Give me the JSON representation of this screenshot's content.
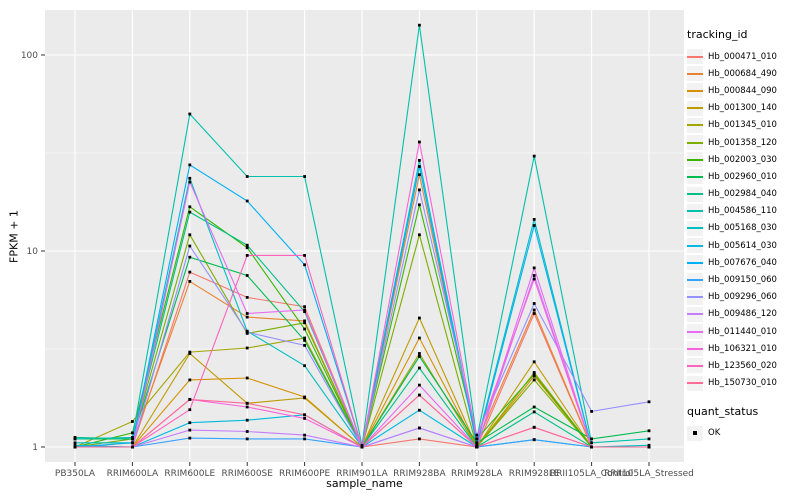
{
  "chart_data": {
    "type": "line",
    "title": "",
    "xlabel": "sample_name",
    "ylabel": "FPKM + 1",
    "yscale": "log10",
    "ylim": [
      0.85,
      170
    ],
    "grid": true,
    "panel_bg": "#EBEBEB",
    "grid_color": "#FFFFFF",
    "marker": "black-square",
    "marker_color": "#000000",
    "tick_color": "#333333",
    "tick_label_color": "#4D4D4D",
    "y_ticks": {
      "values": [
        1,
        10,
        100
      ],
      "labels": [
        "1",
        "10",
        "100"
      ]
    },
    "y_minor_ticks": [
      3.1623,
      31.623
    ],
    "x": [
      "PB350LA",
      "RRIM600LA",
      "RRIM600LE",
      "RRIM600SE",
      "RRIM600PE",
      "RRIM901LA",
      "RRIM928BA",
      "RRIM928LA",
      "RRIM928LE",
      "RRII105LA_Control",
      "RRII105LA_Stressed"
    ],
    "legend": {
      "title": "tracking_id",
      "position": "right",
      "key_bg": "#F2F2F2"
    },
    "quant_legend": {
      "title": "quant_status",
      "items": [
        {
          "label": "OK",
          "marker": "square",
          "color": "#000000"
        }
      ]
    },
    "series": [
      {
        "name": "Hb_000471_010",
        "color": "#F8766D",
        "values": [
          1.0,
          1.0,
          7.8,
          5.8,
          5.2,
          1.0,
          1.1,
          1.0,
          4.8,
          1.0,
          1.0
        ]
      },
      {
        "name": "Hb_000684_490",
        "color": "#EA8331",
        "values": [
          1.0,
          1.05,
          7.0,
          4.6,
          4.4,
          1.0,
          24.5,
          1.05,
          5.0,
          1.0,
          1.0
        ]
      },
      {
        "name": "Hb_000844_090",
        "color": "#D89000",
        "values": [
          1.0,
          1.0,
          2.2,
          2.25,
          1.8,
          1.0,
          3.6,
          1.0,
          2.3,
          1.0,
          1.0
        ]
      },
      {
        "name": "Hb_001300_140",
        "color": "#C09B00",
        "values": [
          1.0,
          1.0,
          3.0,
          1.67,
          1.78,
          1.0,
          4.55,
          1.0,
          2.72,
          1.0,
          1.0
        ]
      },
      {
        "name": "Hb_001345_010",
        "color": "#A3A500",
        "values": [
          1.0,
          1.35,
          3.05,
          3.2,
          3.6,
          1.0,
          3.0,
          1.0,
          2.4,
          1.0,
          1.0
        ]
      },
      {
        "name": "Hb_001358_120",
        "color": "#7CAE00",
        "values": [
          1.0,
          1.1,
          12.1,
          3.8,
          4.3,
          1.0,
          12.1,
          1.0,
          2.2,
          1.0,
          1.0
        ]
      },
      {
        "name": "Hb_002003_030",
        "color": "#39B600",
        "values": [
          1.0,
          1.18,
          16.8,
          10.4,
          4.0,
          1.0,
          17.2,
          1.1,
          2.35,
          1.0,
          1.0
        ]
      },
      {
        "name": "Hb_002960_010",
        "color": "#00BB4E",
        "values": [
          1.1,
          1.1,
          9.3,
          7.5,
          3.5,
          1.0,
          2.9,
          1.05,
          1.6,
          1.1,
          1.21
        ]
      },
      {
        "name": "Hb_002984_040",
        "color": "#00C087",
        "values": [
          1.12,
          1.1,
          15.8,
          10.7,
          4.9,
          1.0,
          2.53,
          1.0,
          1.51,
          1.0,
          1.0
        ]
      },
      {
        "name": "Hb_004586_110",
        "color": "#00C1AB",
        "values": [
          1.1,
          1.12,
          50.0,
          24.0,
          24.0,
          1.02,
          142.0,
          1.1,
          30.5,
          1.05,
          1.1
        ]
      },
      {
        "name": "Hb_005168_030",
        "color": "#00BFC4",
        "values": [
          1.05,
          1.05,
          23.5,
          3.9,
          2.6,
          1.0,
          29.0,
          1.05,
          14.5,
          1.0,
          1.02
        ]
      },
      {
        "name": "Hb_005614_030",
        "color": "#00BAE0",
        "values": [
          1.02,
          1.0,
          1.33,
          1.37,
          1.46,
          1.0,
          1.54,
          1.0,
          1.09,
          1.0,
          1.0
        ]
      },
      {
        "name": "Hb_007676_040",
        "color": "#00B0F6",
        "values": [
          1.0,
          1.05,
          27.5,
          18.0,
          8.5,
          1.0,
          27.0,
          1.02,
          13.5,
          1.0,
          1.0
        ]
      },
      {
        "name": "Hb_009150_060",
        "color": "#35A2FF",
        "values": [
          1.0,
          1.0,
          1.11,
          1.1,
          1.1,
          1.0,
          1.25,
          1.0,
          1.09,
          1.0,
          1.0
        ]
      },
      {
        "name": "Hb_009296_060",
        "color": "#9590FF",
        "values": [
          1.0,
          1.0,
          10.6,
          3.85,
          3.3,
          1.0,
          20.5,
          1.15,
          5.4,
          1.52,
          1.7
        ]
      },
      {
        "name": "Hb_009486_120",
        "color": "#C77CFF",
        "values": [
          1.0,
          1.0,
          1.22,
          1.2,
          1.15,
          1.0,
          1.25,
          1.0,
          7.5,
          1.0,
          1.0
        ]
      },
      {
        "name": "Hb_011440_010",
        "color": "#E76BF3",
        "values": [
          1.0,
          1.0,
          22.5,
          4.8,
          5.0,
          1.0,
          2.07,
          1.0,
          8.2,
          1.0,
          1.0
        ]
      },
      {
        "name": "Hb_106321_010",
        "color": "#FA62DB",
        "values": [
          1.0,
          1.0,
          1.75,
          1.6,
          1.4,
          1.0,
          36.0,
          1.1,
          7.2,
          1.0,
          1.0
        ]
      },
      {
        "name": "Hb_123560_020",
        "color": "#FF62BC",
        "values": [
          1.0,
          1.0,
          1.55,
          9.5,
          9.5,
          1.0,
          1.84,
          1.0,
          1.26,
          1.0,
          1.0
        ]
      },
      {
        "name": "Hb_150730_010",
        "color": "#FF6A98",
        "values": [
          1.0,
          1.0,
          1.75,
          1.67,
          1.46,
          1.0,
          1.84,
          1.0,
          1.26,
          1.0,
          1.0
        ]
      }
    ]
  }
}
